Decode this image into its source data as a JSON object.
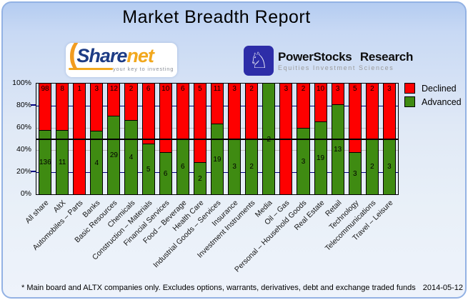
{
  "title": "Market Breadth Report",
  "logos": {
    "sharenet": {
      "name_part1": "Share",
      "name_part2": "net",
      "tagline": "your key to investing"
    },
    "powerstocks": {
      "name": "PowerStocks Research",
      "tagline": "Equities Investment Sciences",
      "icon": "chess-knight-icon",
      "icon_glyph": "♘",
      "brand_color": "#2d2da8"
    }
  },
  "footer": {
    "note": "* Main board and ALTX companies only. Excludes options, warrants, derivatives, debt and exchange traded funds",
    "date": "2014-05-12"
  },
  "chart_data": {
    "type": "bar",
    "stacked": true,
    "normalized": "percent",
    "title": "Market Breadth Report",
    "categories": [
      "All share",
      "AltX",
      "Automobiles – Parts",
      "Banks",
      "Basic Resources",
      "Chemicals",
      "Construction – Materials",
      "Financial Services",
      "Food – Beverage",
      "Health Care",
      "Industrial Goods – Services",
      "Insurance",
      "Investment Instruments",
      "Media",
      "Oil – Gas",
      "Personal – Household Goods",
      "Real Estate",
      "Retail",
      "Technology",
      "Telecommunications",
      "Travel – Leisure"
    ],
    "series": [
      {
        "name": "Declined",
        "color": "#fe0000",
        "values": [
          98,
          8,
          1,
          3,
          12,
          2,
          6,
          10,
          6,
          5,
          11,
          3,
          2,
          0,
          3,
          2,
          10,
          3,
          5,
          2,
          3
        ]
      },
      {
        "name": "Advanced",
        "color": "#3f8b12",
        "values": [
          136,
          11,
          0,
          4,
          29,
          4,
          5,
          6,
          6,
          2,
          19,
          3,
          2,
          2,
          0,
          3,
          19,
          13,
          3,
          2,
          3
        ]
      }
    ],
    "y_ticks": [
      "0%",
      "20%",
      "40%",
      "60%",
      "80%",
      "100%"
    ],
    "ylim": [
      0,
      100
    ],
    "gridlines": {
      "major_pcts": [
        20,
        80
      ],
      "major_color": "#000080",
      "minor_pcts": [
        40,
        60
      ],
      "minor_color": "#bcbcbc",
      "reference_line_pct": 50,
      "reference_color": "#000000"
    },
    "legend_position": "top-right",
    "bar_value_labels": "shown, zeros hidden"
  }
}
